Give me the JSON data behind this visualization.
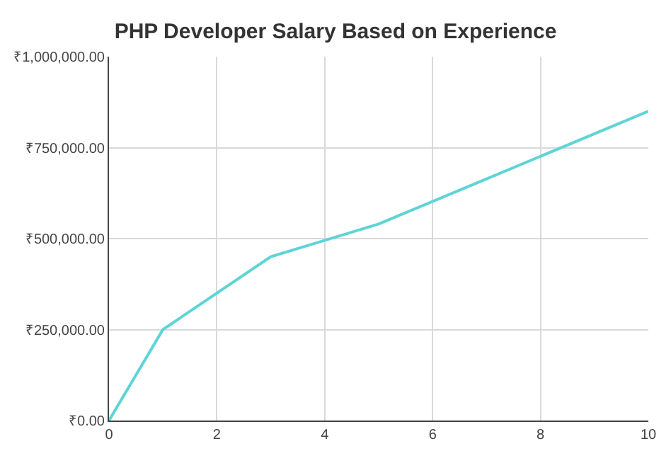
{
  "chart_data": {
    "type": "line",
    "title": "PHP Developer Salary Based on Experience",
    "x": [
      0,
      1,
      3,
      5,
      10
    ],
    "series": [
      {
        "color": "#5fd4d6",
        "values": [
          0,
          250000,
          450000,
          540000,
          850000
        ]
      }
    ],
    "xlim": [
      0,
      10
    ],
    "xticks": [
      0,
      2,
      4,
      6,
      8,
      10
    ],
    "ylim": [
      0,
      1000000
    ],
    "yticks": [
      {
        "value": 0,
        "label": "₹0.00"
      },
      {
        "value": 250000,
        "label": "₹250,000.00"
      },
      {
        "value": 500000,
        "label": "₹500,000.00"
      },
      {
        "value": 750000,
        "label": "₹750,000.00"
      },
      {
        "value": 1000000,
        "label": "₹1,000,000.00"
      }
    ],
    "grid": true,
    "marker": "none",
    "line_style": "solid"
  }
}
